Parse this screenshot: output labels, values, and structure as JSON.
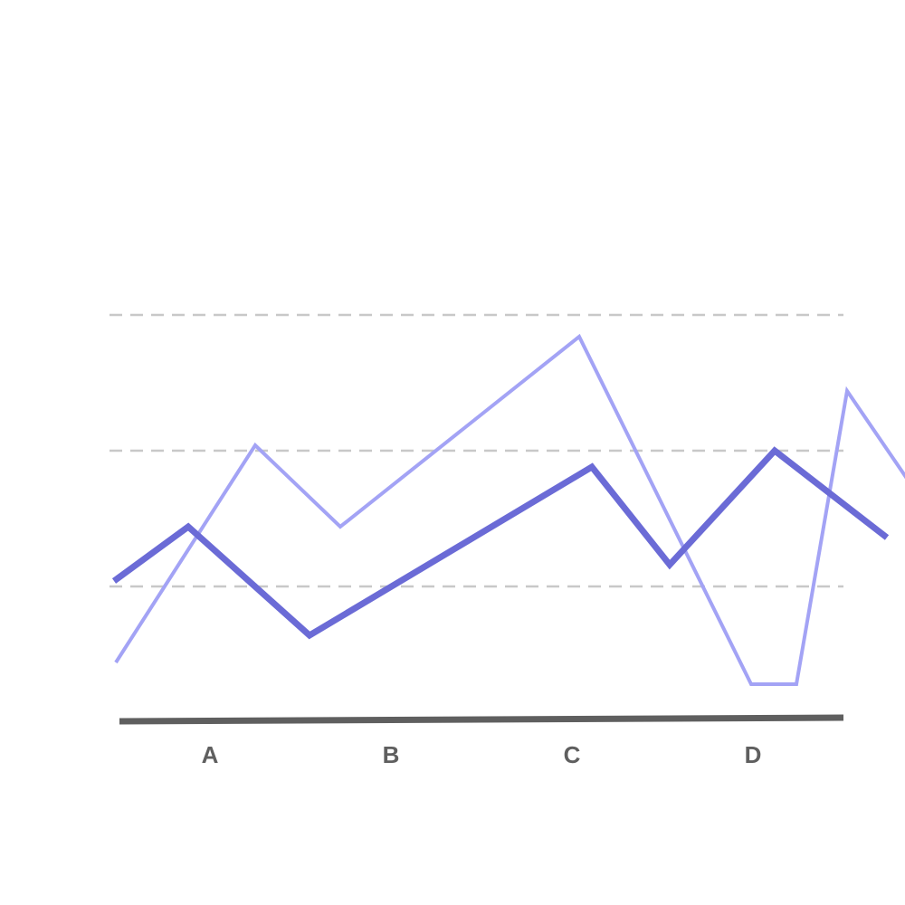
{
  "chart_data": {
    "type": "line",
    "title": "",
    "xlabel": "",
    "ylabel": "",
    "categories": [
      "A",
      "B",
      "C",
      "D"
    ],
    "x_range": [
      0.5,
      4.5
    ],
    "y_range": [
      0,
      100
    ],
    "gridlines_y": [
      75,
      50,
      25
    ],
    "grid": "horizontal-dashed",
    "legend": "none",
    "series": [
      {
        "color": "#a3a3f5",
        "style": "thin",
        "points": [
          {
            "x": 0.48,
            "y": 11
          },
          {
            "x": 1.25,
            "y": 51
          },
          {
            "x": 1.72,
            "y": 36
          },
          {
            "x": 3.04,
            "y": 71
          },
          {
            "x": 3.99,
            "y": 7
          },
          {
            "x": 4.24,
            "y": 7
          },
          {
            "x": 4.52,
            "y": 61
          },
          {
            "x": 4.93,
            "y": 41
          }
        ]
      },
      {
        "color": "#6b6bd6",
        "style": "thick",
        "points": [
          {
            "x": 0.47,
            "y": 26
          },
          {
            "x": 0.88,
            "y": 36
          },
          {
            "x": 1.55,
            "y": 16
          },
          {
            "x": 3.11,
            "y": 47
          },
          {
            "x": 3.54,
            "y": 29
          },
          {
            "x": 4.12,
            "y": 50
          },
          {
            "x": 4.74,
            "y": 34
          }
        ]
      }
    ],
    "colors": {
      "grid": "#c8c8c8",
      "axis": "#5f5f5f",
      "tick_label": "#5f5f5f"
    }
  }
}
